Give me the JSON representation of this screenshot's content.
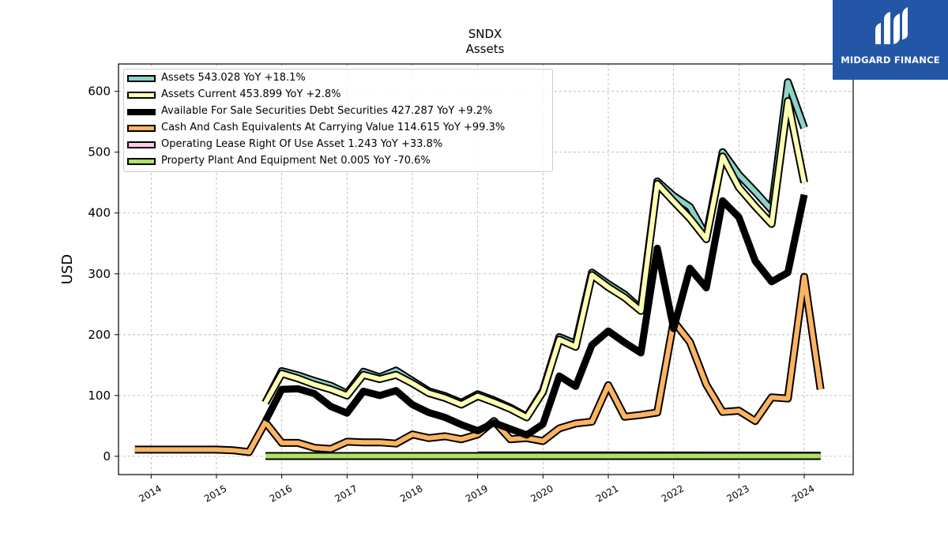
{
  "brand": {
    "name": "MIDGARD FINANCE",
    "bg_color": "#2456a8"
  },
  "chart_data": {
    "type": "line",
    "title": "SNDX",
    "subtitle": "Assets",
    "xlabel": "",
    "ylabel": "USD",
    "xlim": [
      2013.5,
      2024.75
    ],
    "ylim": [
      -30,
      645
    ],
    "x_ticks": [
      "2014",
      "2015",
      "2016",
      "2017",
      "2018",
      "2019",
      "2020",
      "2021",
      "2022",
      "2023",
      "2024"
    ],
    "y_ticks": [
      0,
      100,
      200,
      300,
      400,
      500,
      600
    ],
    "grid": true,
    "legend_position": "top-left",
    "series": [
      {
        "name": "Assets",
        "legend": "Assets  543.028 YoY +18.1%",
        "color": "#8dd3c7",
        "style": "band",
        "points": [
          [
            2015.75,
            88
          ],
          [
            2016.0,
            140
          ],
          [
            2016.25,
            133
          ],
          [
            2016.5,
            124
          ],
          [
            2016.75,
            116
          ],
          [
            2017.0,
            103
          ],
          [
            2017.25,
            139
          ],
          [
            2017.5,
            130
          ],
          [
            2017.75,
            141
          ],
          [
            2018.0,
            124
          ],
          [
            2018.25,
            107
          ],
          [
            2018.5,
            99
          ],
          [
            2018.75,
            88
          ],
          [
            2019.0,
            102
          ],
          [
            2019.25,
            92
          ],
          [
            2019.5,
            80
          ],
          [
            2019.75,
            65
          ],
          [
            2020.0,
            108
          ],
          [
            2020.25,
            196
          ],
          [
            2020.5,
            185
          ],
          [
            2020.75,
            302
          ],
          [
            2021.0,
            283
          ],
          [
            2021.25,
            266
          ],
          [
            2021.5,
            242
          ],
          [
            2021.75,
            452
          ],
          [
            2022.0,
            428
          ],
          [
            2022.25,
            410
          ],
          [
            2022.5,
            362
          ],
          [
            2022.75,
            500
          ],
          [
            2023.0,
            463
          ],
          [
            2023.25,
            435
          ],
          [
            2023.5,
            405
          ],
          [
            2023.75,
            615
          ],
          [
            2024.0,
            540
          ]
        ]
      },
      {
        "name": "Assets Current",
        "legend": "Assets Current  453.899 YoY +2.8%",
        "color": "#ffffb3",
        "style": "band",
        "points": [
          [
            2015.75,
            88
          ],
          [
            2016.0,
            136
          ],
          [
            2016.25,
            128
          ],
          [
            2016.5,
            118
          ],
          [
            2016.75,
            110
          ],
          [
            2017.0,
            100
          ],
          [
            2017.25,
            134
          ],
          [
            2017.5,
            127
          ],
          [
            2017.75,
            134
          ],
          [
            2018.0,
            120
          ],
          [
            2018.25,
            104
          ],
          [
            2018.5,
            96
          ],
          [
            2018.75,
            85
          ],
          [
            2019.0,
            99
          ],
          [
            2019.25,
            89
          ],
          [
            2019.5,
            78
          ],
          [
            2019.75,
            64
          ],
          [
            2020.0,
            106
          ],
          [
            2020.25,
            192
          ],
          [
            2020.5,
            180
          ],
          [
            2020.75,
            298
          ],
          [
            2021.0,
            278
          ],
          [
            2021.25,
            261
          ],
          [
            2021.5,
            239
          ],
          [
            2021.75,
            448
          ],
          [
            2022.0,
            419
          ],
          [
            2022.25,
            391
          ],
          [
            2022.5,
            357
          ],
          [
            2022.75,
            493
          ],
          [
            2023.0,
            442
          ],
          [
            2023.25,
            411
          ],
          [
            2023.5,
            382
          ],
          [
            2023.75,
            584
          ],
          [
            2024.0,
            450
          ]
        ]
      },
      {
        "name": "Available For Sale Securities Debt Securities",
        "legend": "Available For Sale Securities Debt Securities  427.287 YoY +9.2%",
        "color": "#000000",
        "style": "thick",
        "points": [
          [
            2015.75,
            58
          ],
          [
            2016.0,
            110
          ],
          [
            2016.25,
            111
          ],
          [
            2016.5,
            103
          ],
          [
            2016.75,
            82
          ],
          [
            2017.0,
            71
          ],
          [
            2017.25,
            107
          ],
          [
            2017.5,
            100
          ],
          [
            2017.75,
            108
          ],
          [
            2018.0,
            85
          ],
          [
            2018.25,
            72
          ],
          [
            2018.5,
            64
          ],
          [
            2018.75,
            52
          ],
          [
            2019.0,
            42
          ],
          [
            2019.25,
            55
          ],
          [
            2019.5,
            45
          ],
          [
            2019.75,
            35
          ],
          [
            2020.0,
            53
          ],
          [
            2020.25,
            132
          ],
          [
            2020.5,
            115
          ],
          [
            2020.75,
            183
          ],
          [
            2021.0,
            206
          ],
          [
            2021.25,
            187
          ],
          [
            2021.5,
            170
          ],
          [
            2021.75,
            342
          ],
          [
            2022.0,
            210
          ],
          [
            2022.25,
            309
          ],
          [
            2022.5,
            277
          ],
          [
            2022.75,
            420
          ],
          [
            2023.0,
            393
          ],
          [
            2023.25,
            321
          ],
          [
            2023.5,
            287
          ],
          [
            2023.75,
            302
          ],
          [
            2024.0,
            430
          ]
        ]
      },
      {
        "name": "Cash And Cash Equivalents At Carrying Value",
        "legend": "Cash And Cash Equivalents At Carrying Value  114.615 YoY +99.3%",
        "color": "#fdb462",
        "style": "band",
        "points": [
          [
            2013.75,
            11
          ],
          [
            2014.0,
            11
          ],
          [
            2014.25,
            11
          ],
          [
            2014.5,
            11
          ],
          [
            2014.75,
            11
          ],
          [
            2015.0,
            11
          ],
          [
            2015.25,
            10
          ],
          [
            2015.5,
            7
          ],
          [
            2015.75,
            56
          ],
          [
            2016.0,
            22
          ],
          [
            2016.25,
            22
          ],
          [
            2016.5,
            14
          ],
          [
            2016.75,
            12
          ],
          [
            2017.0,
            24
          ],
          [
            2017.25,
            23
          ],
          [
            2017.5,
            23
          ],
          [
            2017.75,
            21
          ],
          [
            2018.0,
            36
          ],
          [
            2018.25,
            30
          ],
          [
            2018.5,
            33
          ],
          [
            2018.75,
            28
          ],
          [
            2019.0,
            36
          ],
          [
            2019.25,
            58
          ],
          [
            2019.5,
            28
          ],
          [
            2019.75,
            30
          ],
          [
            2020.0,
            25
          ],
          [
            2020.25,
            46
          ],
          [
            2020.5,
            54
          ],
          [
            2020.75,
            57
          ],
          [
            2021.0,
            117
          ],
          [
            2021.25,
            65
          ],
          [
            2021.5,
            68
          ],
          [
            2021.75,
            72
          ],
          [
            2022.0,
            222
          ],
          [
            2022.25,
            188
          ],
          [
            2022.5,
            118
          ],
          [
            2022.75,
            73
          ],
          [
            2023.0,
            75
          ],
          [
            2023.25,
            58
          ],
          [
            2023.5,
            97
          ],
          [
            2023.75,
            95
          ],
          [
            2024.0,
            295
          ],
          [
            2024.25,
            110
          ]
        ]
      },
      {
        "name": "Operating Lease Right Of Use Asset",
        "legend": "Operating Lease Right Of Use Asset  1.243 YoY +33.8%",
        "color": "#fccde5",
        "style": "band",
        "points": [
          [
            2019.0,
            1.5
          ],
          [
            2024.25,
            1.2
          ]
        ]
      },
      {
        "name": "Property Plant And Equipment Net",
        "legend": "Property Plant And Equipment Net  0.005 YoY -70.6%",
        "color": "#b3de69",
        "style": "band",
        "points": [
          [
            2015.75,
            0.5
          ],
          [
            2024.25,
            0.5
          ]
        ]
      }
    ]
  }
}
